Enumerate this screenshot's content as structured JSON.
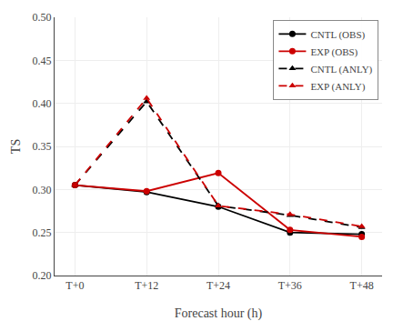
{
  "chart_data": {
    "type": "line",
    "xlabel": "Forecast hour (h)",
    "ylabel": "TS",
    "categories": [
      "T+0",
      "T+12",
      "T+24",
      "T+36",
      "T+48"
    ],
    "series": [
      {
        "name": "CNTL (OBS)",
        "color": "#000000",
        "line_style": "solid",
        "marker": "circle",
        "values": [
          0.305,
          0.297,
          0.28,
          0.25,
          0.248
        ]
      },
      {
        "name": "EXP (OBS)",
        "color": "#cc0000",
        "line_style": "solid",
        "marker": "circle",
        "values": [
          0.305,
          0.298,
          0.319,
          0.253,
          0.245
        ]
      },
      {
        "name": "CNTL (ANLY)",
        "color": "#000000",
        "line_style": "dashed",
        "marker": "triangle-up",
        "values": [
          0.305,
          0.402,
          0.281,
          0.27,
          0.256
        ]
      },
      {
        "name": "EXP (ANLY)",
        "color": "#cc0000",
        "line_style": "dashed",
        "marker": "triangle-up",
        "values": [
          0.305,
          0.406,
          0.281,
          0.271,
          0.257
        ]
      }
    ],
    "ylim": [
      0.2,
      0.5
    ],
    "yticks": [
      {
        "value": 0.2,
        "label": "0.20"
      },
      0.25,
      {
        "value": 0.3,
        "label": "0.30"
      },
      0.35,
      {
        "value": 0.4,
        "label": "0.40"
      },
      0.45,
      {
        "value": 0.5,
        "label": "0.50"
      }
    ],
    "grid": true,
    "legend": "upper right"
  }
}
